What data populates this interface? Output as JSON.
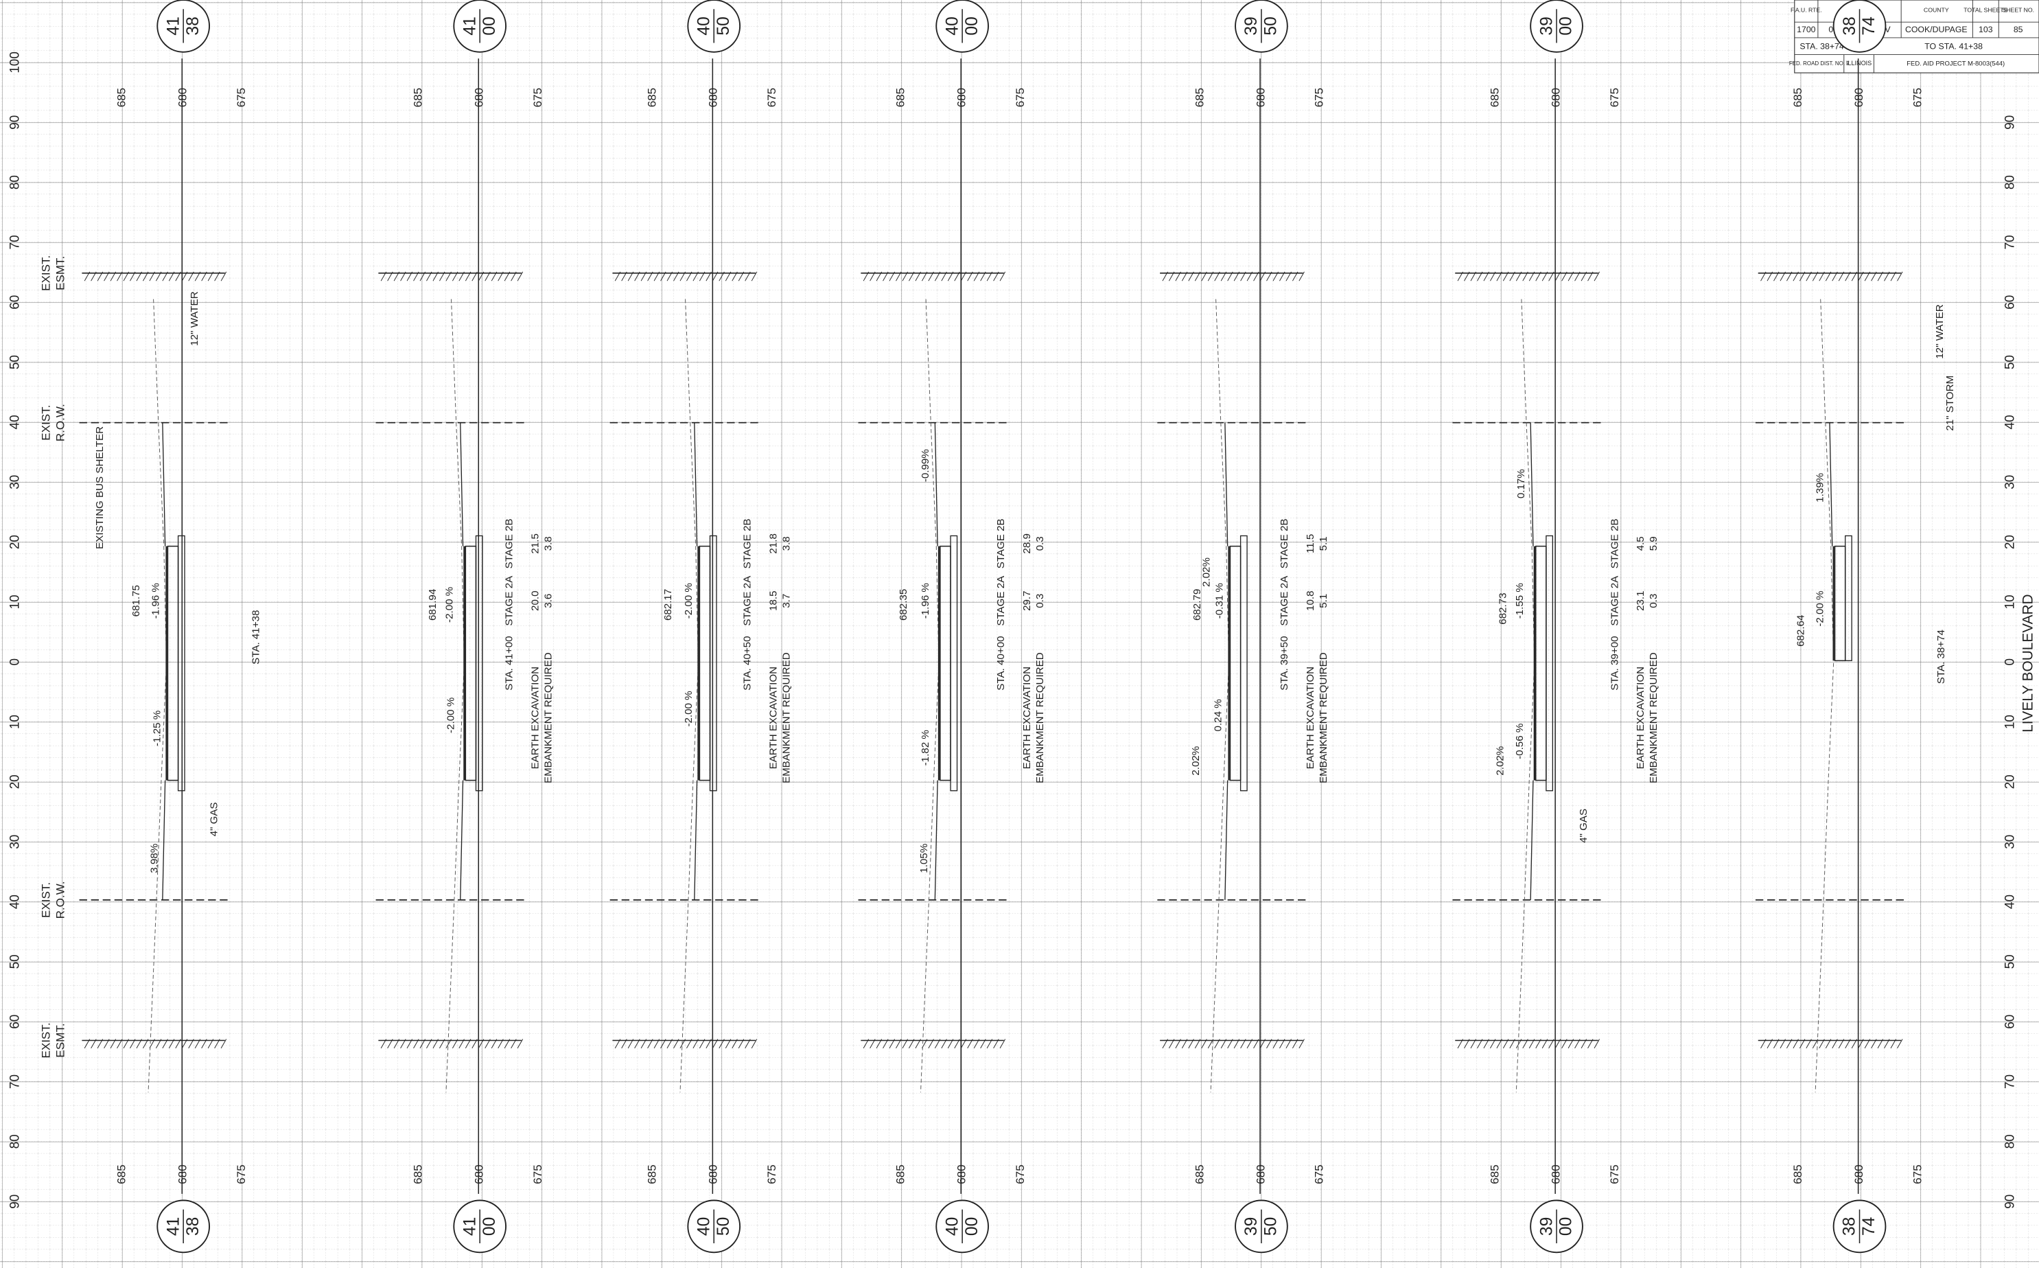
{
  "title_block": {
    "headers": [
      "F.A.U. RTE.",
      "SECTION",
      "COUNTY",
      "TOTAL SHEETS",
      "SHEET NO."
    ],
    "values": [
      "1700",
      "05-00045-02-PV",
      "COOK/DUPAGE",
      "103",
      "85"
    ],
    "station_from": "STA. 38+74",
    "station_to": "TO STA. 41+38",
    "district": "FED. ROAD DIST. NO. 7",
    "state": "ILLINOIS",
    "project": "FED. AID PROJECT M-8003(544)"
  },
  "road_name": "LIVELY BOULEVARD",
  "offsets_left": [
    "100",
    "90",
    "80",
    "70",
    "60",
    "50",
    "40",
    "30",
    "20",
    "10",
    "0",
    "10",
    "20",
    "30",
    "40",
    "50",
    "60",
    "70",
    "80",
    "90"
  ],
  "offsets_right": [
    "90",
    "80",
    "70",
    "60",
    "50",
    "40",
    "30",
    "20",
    "10",
    "0",
    "10",
    "20",
    "30",
    "40",
    "50",
    "60",
    "70",
    "80",
    "90"
  ],
  "left_notes": [
    [
      "EXIST.",
      "ESMT."
    ],
    [
      "EXIST.",
      "R.O.W."
    ],
    [
      "EXIST.",
      "R.O.W."
    ],
    [
      "EXIST.",
      "ESMT."
    ]
  ],
  "sections": [
    {
      "station_top": [
        "41",
        "38"
      ],
      "station_bottom": [
        "41",
        "38"
      ],
      "elev_top": [
        "685",
        "680",
        "675"
      ],
      "elev_bottom": [
        "685",
        "680",
        "675"
      ],
      "station_label": "STA. 41+38",
      "annotations": [
        "681.75",
        "-1.96 %",
        "-1.25 %",
        "3.98%",
        "4\" GAS",
        "12\" WATER",
        "EXISTING BUS SHELTER"
      ]
    },
    {
      "station_top": [
        "41",
        "00"
      ],
      "station_bottom": [
        "41",
        "00"
      ],
      "elev_top": [
        "685",
        "680",
        "675"
      ],
      "elev_bottom": [
        "685",
        "680",
        "675"
      ],
      "station_label": "STA. 41+00",
      "annotations": [
        "681.94",
        "-2.00 %",
        "-2.00 %"
      ],
      "stage_headers": [
        "STAGE 2A",
        "STAGE 2B"
      ],
      "earthwork": [
        {
          "item": "EARTH EXCAVATION",
          "stage_2a": "20.0",
          "stage_2b": "21.5"
        },
        {
          "item": "EMBANKMENT REQUIRED",
          "stage_2a": "3.6",
          "stage_2b": "3.8"
        }
      ]
    },
    {
      "station_top": [
        "40",
        "50"
      ],
      "station_bottom": [
        "40",
        "50"
      ],
      "elev_top": [
        "685",
        "680",
        "675"
      ],
      "elev_bottom": [
        "685",
        "680",
        "675"
      ],
      "station_label": "STA. 40+50",
      "annotations": [
        "682.17",
        "-2.00 %",
        "-2.00 %"
      ],
      "stage_headers": [
        "STAGE 2A",
        "STAGE 2B"
      ],
      "earthwork": [
        {
          "item": "EARTH EXCAVATION",
          "stage_2a": "18.5",
          "stage_2b": "21.8"
        },
        {
          "item": "EMBANKMENT REQUIRED",
          "stage_2a": "3.7",
          "stage_2b": "3.8"
        }
      ]
    },
    {
      "station_top": [
        "40",
        "00"
      ],
      "station_bottom": [
        "40",
        "00"
      ],
      "elev_top": [
        "685",
        "680",
        "675"
      ],
      "elev_bottom": [
        "685",
        "680",
        "675"
      ],
      "station_label": "STA. 40+00",
      "annotations": [
        "682.35",
        "-1.96 %",
        "-1.82 %",
        "-0.99%",
        "1.05%"
      ],
      "stage_headers": [
        "STAGE 2A",
        "STAGE 2B"
      ],
      "earthwork": [
        {
          "item": "EARTH EXCAVATION",
          "stage_2a": "29.7",
          "stage_2b": "28.9"
        },
        {
          "item": "EMBANKMENT REQUIRED",
          "stage_2a": "0.3",
          "stage_2b": "0.3"
        }
      ]
    },
    {
      "station_top": [
        "39",
        "50"
      ],
      "station_bottom": [
        "39",
        "50"
      ],
      "elev_top": [
        "685",
        "680",
        "675"
      ],
      "elev_bottom": [
        "685",
        "680",
        "675"
      ],
      "station_label": "STA. 39+50",
      "annotations": [
        "682.79",
        "2.02%",
        "-0.31 %",
        "0.24 %",
        "2.02%"
      ],
      "stage_headers": [
        "STAGE 2A",
        "STAGE 2B"
      ],
      "earthwork": [
        {
          "item": "EARTH EXCAVATION",
          "stage_2a": "10.8",
          "stage_2b": "11.5"
        },
        {
          "item": "EMBANKMENT REQUIRED",
          "stage_2a": "5.1",
          "stage_2b": "5.1"
        }
      ]
    },
    {
      "station_top": [
        "39",
        "00"
      ],
      "station_bottom": [
        "39",
        "00"
      ],
      "elev_top": [
        "685",
        "680",
        "675"
      ],
      "elev_bottom": [
        "685",
        "680",
        "675"
      ],
      "station_label": "STA. 39+00",
      "annotations": [
        "682.73",
        "-1.55 %",
        "-0.56 %",
        "0.17%",
        "2.02%",
        "4\" GAS"
      ],
      "stage_headers": [
        "STAGE 2A",
        "STAGE 2B"
      ],
      "earthwork": [
        {
          "item": "EARTH EXCAVATION",
          "stage_2a": "23.1",
          "stage_2b": "4.5"
        },
        {
          "item": "EMBANKMENT REQUIRED",
          "stage_2a": "0.3",
          "stage_2b": "5.9"
        }
      ]
    },
    {
      "station_top": [
        "38",
        "74"
      ],
      "station_bottom": [
        "38",
        "74"
      ],
      "elev_top": [
        "685",
        "680",
        "675"
      ],
      "elev_bottom": [
        "685",
        "680",
        "675"
      ],
      "station_label": "STA. 38+74",
      "annotations": [
        "682.64",
        "-2.00 %",
        "1.39%",
        "12\" WATER",
        "21\" STORM"
      ]
    }
  ]
}
